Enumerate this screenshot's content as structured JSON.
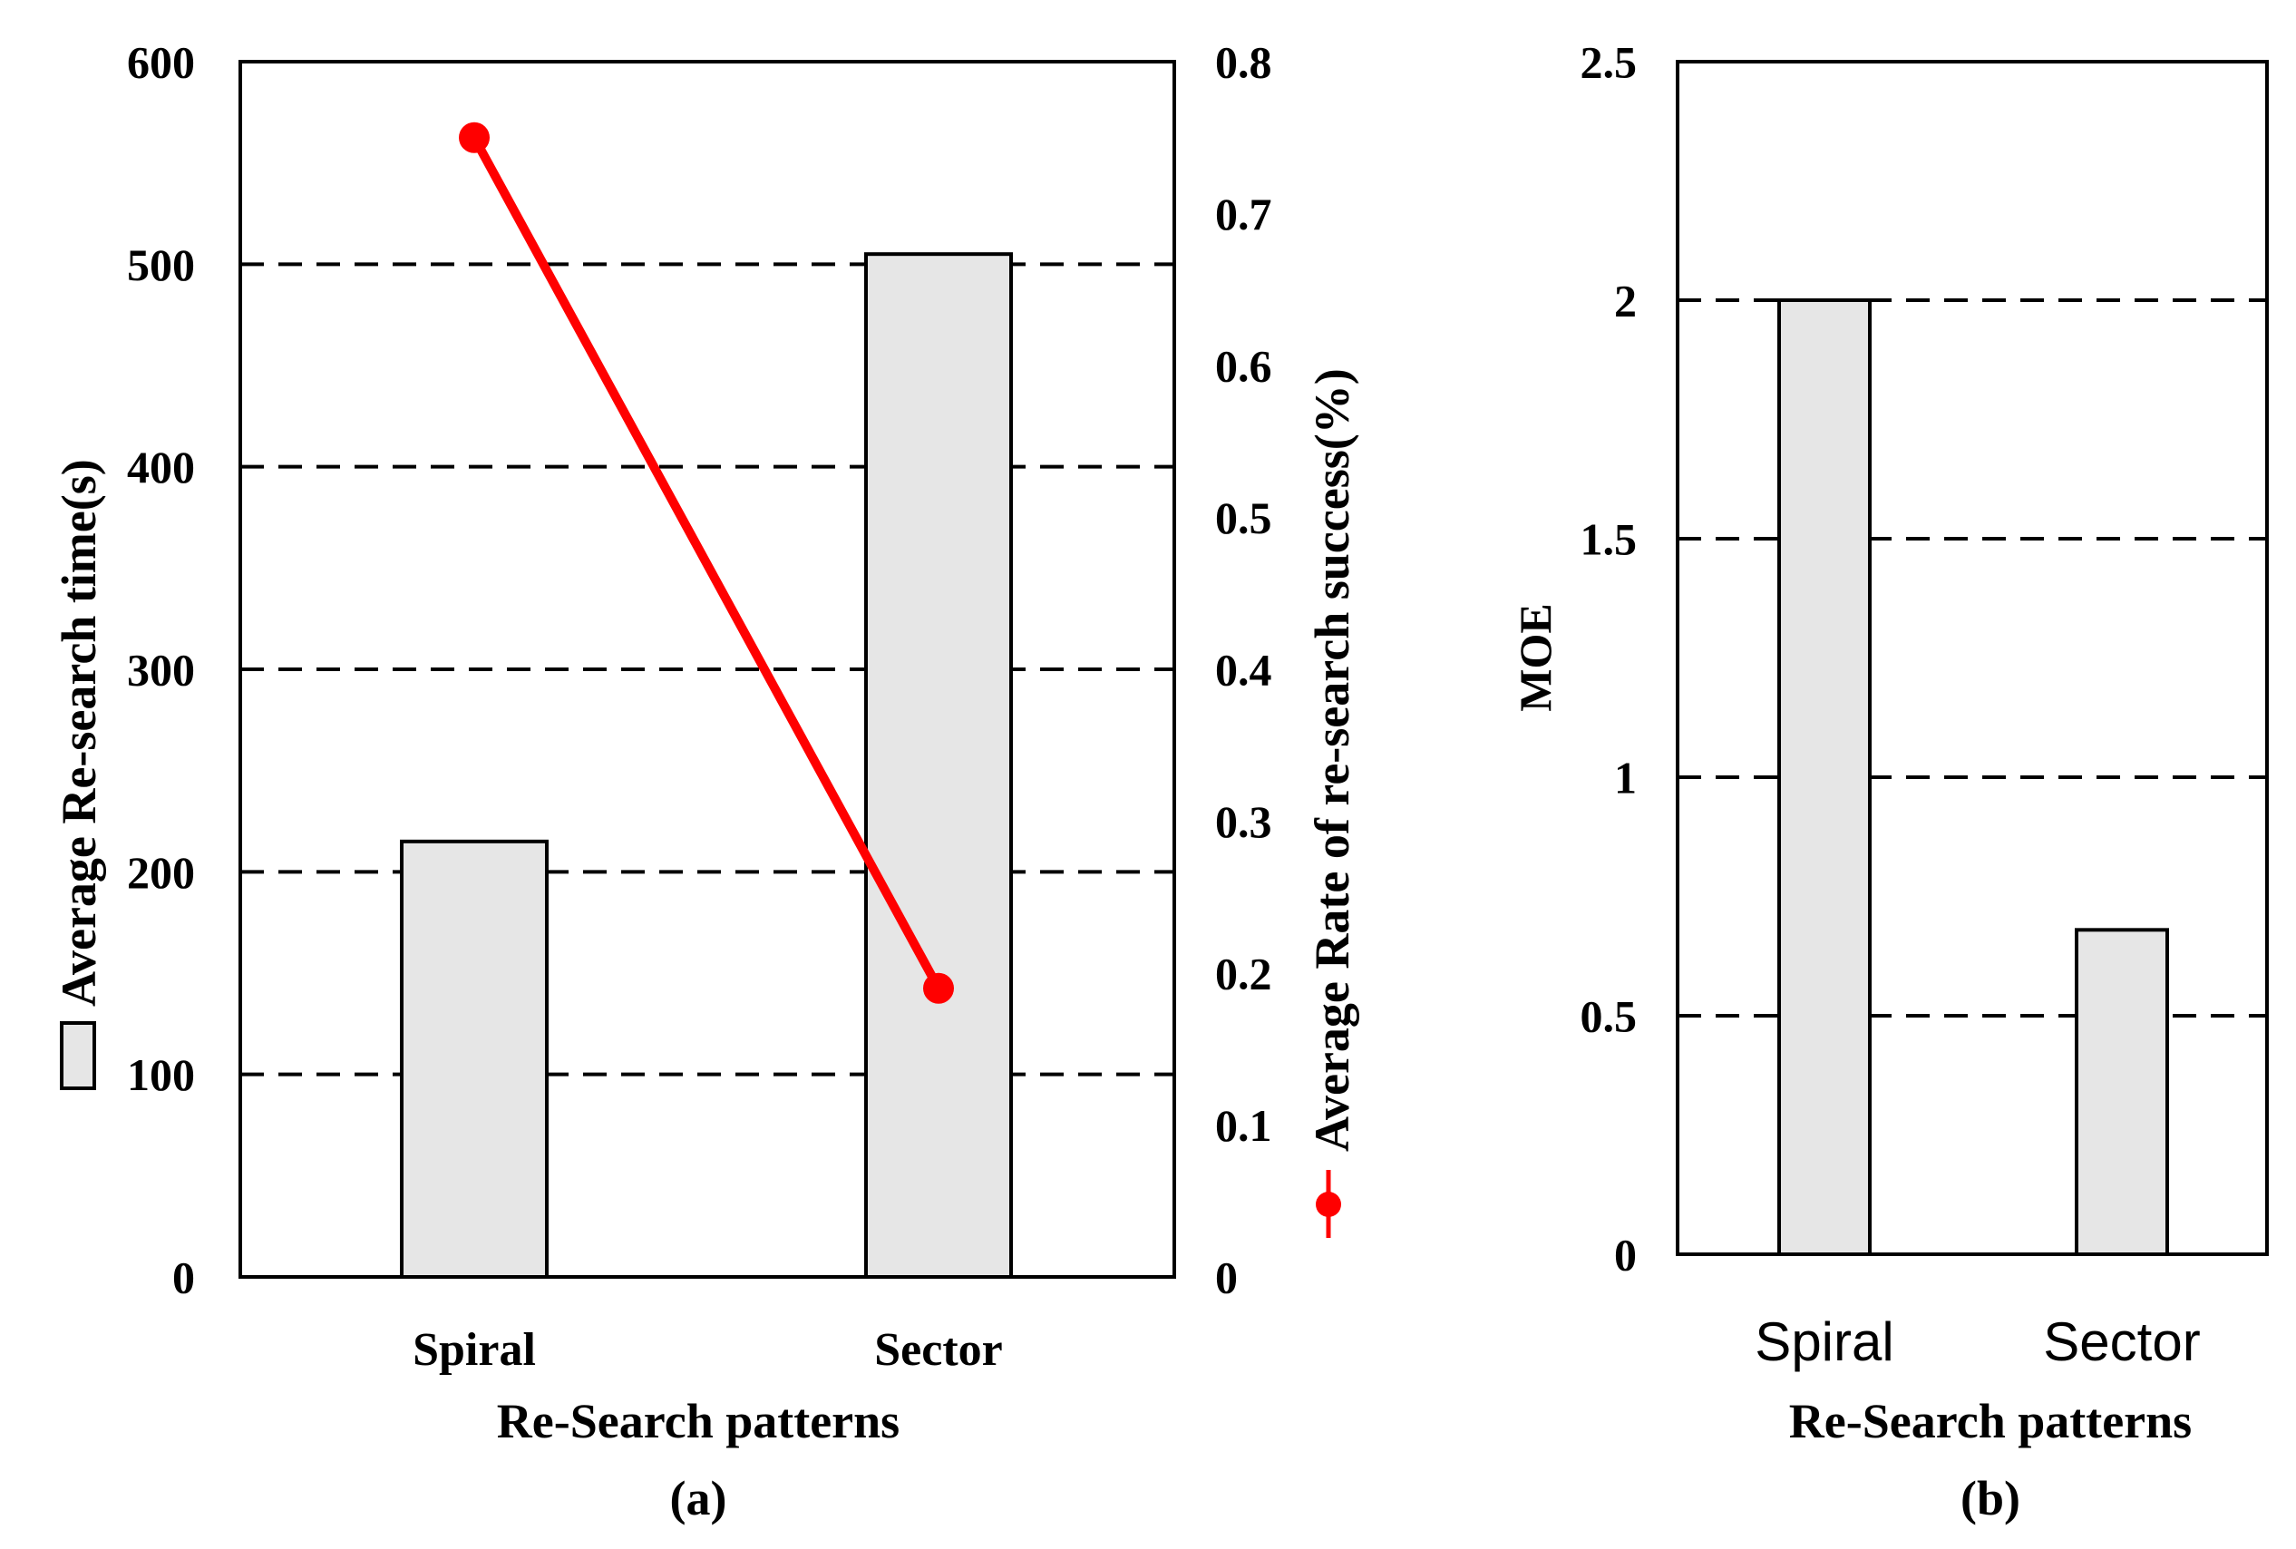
{
  "chart_data": [
    {
      "panel_label": "(a)",
      "type": "bar",
      "categories": [
        "Spiral",
        "Sector"
      ],
      "xlabel": "Re-Search patterns",
      "ylabel": "Average Re-search time(s)",
      "ylim": [
        0,
        600
      ],
      "yticks": [
        "0",
        "100",
        "200",
        "300",
        "400",
        "500",
        "600"
      ],
      "y2label": "Average Rate of re-search success(%)",
      "y2lim": [
        0,
        0.8
      ],
      "y2ticks": [
        "0",
        "0.1",
        "0.2",
        "0.3",
        "0.4",
        "0.5",
        "0.6",
        "0.7",
        "0.8"
      ],
      "grid": "horizontal dashed",
      "series": [
        {
          "type": "bar",
          "axis": "left",
          "values": [
            215,
            505
          ],
          "color": "#e6e6e6"
        },
        {
          "type": "line",
          "axis": "right",
          "values": [
            0.75,
            0.19
          ],
          "color": "#ff0000"
        }
      ]
    },
    {
      "panel_label": "(b)",
      "type": "bar",
      "categories": [
        "Spiral",
        "Sector"
      ],
      "xlabel": "Re-Search patterns",
      "ylabel": "MOE",
      "ylim": [
        0,
        2.5
      ],
      "yticks": [
        "0",
        "0.5",
        "1",
        "1.5",
        "2",
        "2.5"
      ],
      "grid": "horizontal dashed",
      "series": [
        {
          "type": "bar",
          "axis": "left",
          "values": [
            2.0,
            0.68
          ],
          "color": "#e6e6e6"
        }
      ]
    }
  ]
}
